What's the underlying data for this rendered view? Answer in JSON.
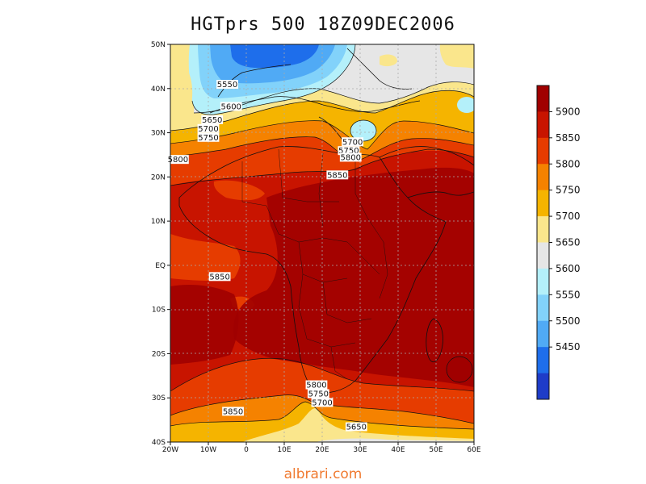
{
  "title": "HGTprs 500 18Z09DEC2006",
  "watermark": "albrari.com",
  "lat_ticks": [
    "50N",
    "40N",
    "30N",
    "20N",
    "10N",
    "EQ",
    "10S",
    "20S",
    "30S",
    "40S"
  ],
  "lon_ticks": [
    "20W",
    "10W",
    "0",
    "10E",
    "20E",
    "30E",
    "40E",
    "50E",
    "60E"
  ],
  "colorbar": {
    "levels": [
      "5900",
      "5850",
      "5800",
      "5750",
      "5700",
      "5650",
      "5600",
      "5550",
      "5500",
      "5450"
    ],
    "colors": [
      "#a00000",
      "#c81400",
      "#e63c00",
      "#f58200",
      "#f5b400",
      "#fae68c",
      "#e6e6e6",
      "#b4f0fa",
      "#82d2fa",
      "#50aaf5",
      "#1e6eeb",
      "#1e3cc8"
    ]
  },
  "contour_labels": [
    {
      "text": "5550",
      "lon": -5,
      "lat": 40.5
    },
    {
      "text": "5600",
      "lon": -4,
      "lat": 35.5
    },
    {
      "text": "5650",
      "lon": -9,
      "lat": 32.5
    },
    {
      "text": "5700",
      "lon": -10,
      "lat": 30.5
    },
    {
      "text": "5750",
      "lon": -10,
      "lat": 28.5
    },
    {
      "text": "5800",
      "lon": -18,
      "lat": 23.5
    },
    {
      "text": "5700",
      "lon": 28,
      "lat": 27.5
    },
    {
      "text": "5750",
      "lon": 27,
      "lat": 25.5
    },
    {
      "text": "5800",
      "lon": 27.5,
      "lat": 24.0
    },
    {
      "text": "5850",
      "lon": 24,
      "lat": 20.0
    },
    {
      "text": "5850",
      "lon": -7,
      "lat": -3.0
    },
    {
      "text": "5800",
      "lon": 18.5,
      "lat": -27.5
    },
    {
      "text": "5750",
      "lon": 19,
      "lat": -29.5
    },
    {
      "text": "5700",
      "lon": 20,
      "lat": -31.5
    },
    {
      "text": "5850",
      "lon": -3.5,
      "lat": -33.5
    },
    {
      "text": "5650",
      "lon": 29,
      "lat": -37.0
    }
  ]
}
